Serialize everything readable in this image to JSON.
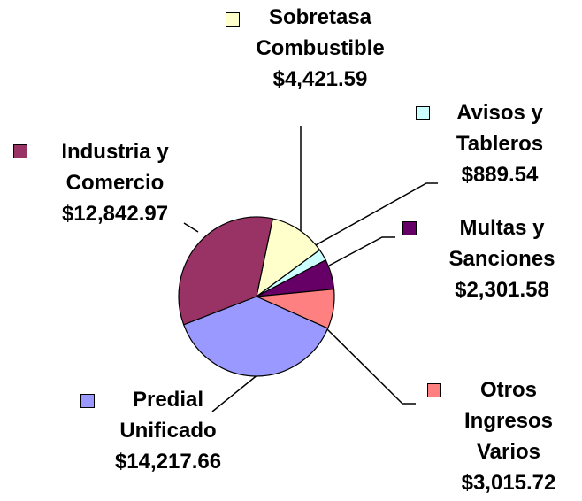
{
  "chart_data": {
    "type": "pie",
    "categories": [
      "Sobretasa Combustible",
      "Avisos y Tableros",
      "Multas y Sanciones",
      "Otros Ingresos Varios",
      "Predial Unificado",
      "Industria y Comercio"
    ],
    "values": [
      4421.59,
      889.54,
      2301.58,
      3015.72,
      14217.66,
      12842.97
    ],
    "value_labels": [
      "$4,421.59",
      "$889.54",
      "$2,301.58",
      "$3,015.72",
      "$14,217.66",
      "$12,842.97"
    ],
    "colors": [
      "#ffffcc",
      "#ccffff",
      "#660066",
      "#ff8080",
      "#9999ff",
      "#993366"
    ]
  }
}
